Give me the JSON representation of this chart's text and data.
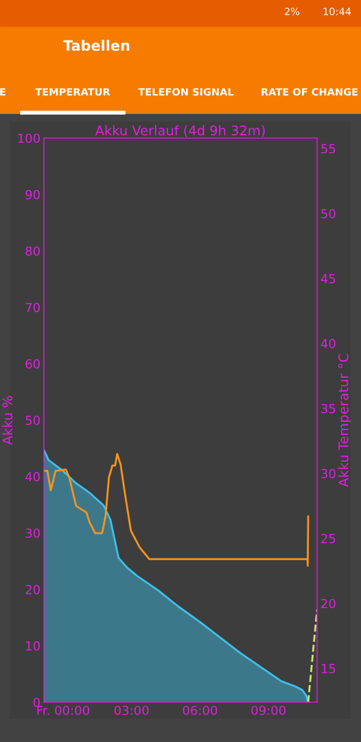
{
  "chart_data": {
    "type": "area",
    "title": "Akku Verlauf (4d 9h 32m)",
    "ylabel": "Akku %",
    "y2label": "Akku Temperatur °C",
    "annotations": [
      "10:44",
      "2%",
      "Tabellen",
      "E",
      "TEMPERATUR",
      "TELEFON SIGNAL",
      "RATE OF CHANGE"
    ],
    "xlim": [
      -0.84,
      11.13
    ],
    "xticks": [
      {
        "value": 0,
        "label": "Fr. 00:00"
      },
      {
        "value": 3,
        "label": "03:00"
      },
      {
        "value": 6,
        "label": "06:00"
      },
      {
        "value": 9,
        "label": "09:00"
      }
    ],
    "ylim": [
      0,
      100
    ],
    "yticks": [
      0,
      10,
      20,
      30,
      40,
      50,
      60,
      70,
      80,
      90,
      100
    ],
    "y2lim": [
      12.4,
      55.8
    ],
    "y2ticks": [
      15,
      20,
      25,
      30,
      35,
      40,
      45,
      50,
      55
    ],
    "grid": false,
    "legend": false,
    "series": [
      {
        "color": "#3fc0e8",
        "x": [
          -0.84,
          -0.63,
          0,
          0.57,
          1.17,
          1.77,
          2.07,
          2.43,
          2.82,
          3.27,
          4.17,
          5.07,
          5.97,
          6.87,
          7.77,
          8.67,
          9.57,
          10.17,
          10.47,
          10.65,
          10.74
        ],
        "values": [
          44.7,
          42.9,
          41.0,
          38.8,
          37.1,
          34.9,
          32.4,
          25.6,
          23.8,
          22.3,
          19.8,
          16.9,
          14.3,
          11.5,
          8.7,
          6.2,
          3.7,
          2.8,
          2.2,
          1.2,
          0
        ]
      },
      {
        "type": "line",
        "axis": "y2",
        "color": "#f7941d",
        "x": [
          -0.84,
          -0.69,
          -0.54,
          -0.33,
          0.12,
          0.27,
          0.57,
          1.02,
          1.17,
          1.41,
          1.71,
          1.86,
          2.01,
          2.16,
          2.28,
          2.37,
          2.52,
          2.67,
          2.97,
          3.36,
          3.78,
          10.71,
          10.72,
          10.74
        ],
        "values": [
          30.2,
          30.2,
          28.7,
          30.2,
          30.3,
          29.7,
          27.5,
          27.0,
          26.2,
          25.4,
          25.4,
          26.7,
          29.7,
          30.6,
          30.6,
          31.5,
          30.7,
          28.9,
          25.6,
          24.3,
          23.4,
          23.4,
          22.9,
          26.7
        ]
      },
      {
        "type": "line",
        "line_style": "dashed",
        "color": "#c8e86a",
        "x": [
          10.74,
          11.13
        ],
        "values": [
          0,
          16.4
        ]
      }
    ]
  }
}
